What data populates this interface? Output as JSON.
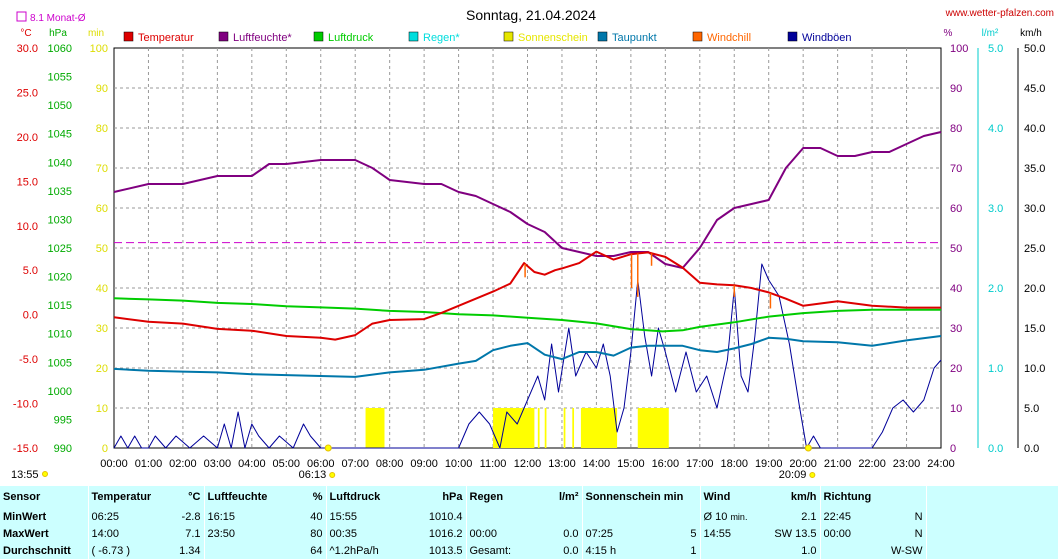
{
  "header": {
    "title": "Sonntag, 21.04.2024",
    "site": "www.wetter-pfalzen.com",
    "month_avg_label": "8.1 Monat-Ø"
  },
  "units": {
    "celsius": "°C",
    "hpa": "hPa",
    "min": "min",
    "percent": "%",
    "rain": "l/m²",
    "wind": "km/h"
  },
  "legend": [
    {
      "label": "Temperatur",
      "color": "#dd0000"
    },
    {
      "label": "Luftfeuchte*",
      "color": "#800080"
    },
    {
      "label": "Luftdruck",
      "color": "#00cc00"
    },
    {
      "label": "Regen*",
      "color": "#00dddd"
    },
    {
      "label": "Sonnenschein",
      "color": "#e6e600"
    },
    {
      "label": "Taupunkt",
      "color": "#0077aa"
    },
    {
      "label": "Windchill",
      "color": "#ff6600"
    },
    {
      "label": "Windböen",
      "color": "#000099"
    }
  ],
  "markers": {
    "sunrise": "06:13",
    "sunset": "20:09",
    "left_time": "13:55"
  },
  "chart_data": {
    "type": "line",
    "title": "Sonntag, 21.04.2024",
    "x_unit": "hours",
    "x_ticks": [
      "00:00",
      "01:00",
      "02:00",
      "03:00",
      "04:00",
      "05:00",
      "06:00",
      "07:00",
      "08:00",
      "09:00",
      "10:00",
      "11:00",
      "12:00",
      "13:00",
      "14:00",
      "15:00",
      "16:00",
      "17:00",
      "18:00",
      "19:00",
      "20:00",
      "21:00",
      "22:00",
      "23:00",
      "24:00"
    ],
    "axes": {
      "temperature": {
        "ticks": [
          "30.0",
          "25.0",
          "20.0",
          "15.0",
          "10.0",
          "5.0",
          "0.0",
          "-5.0",
          "-10.0",
          "-15.0"
        ],
        "range": [
          -15,
          30
        ]
      },
      "pressure": {
        "ticks": [
          "1060",
          "1055",
          "1050",
          "1045",
          "1040",
          "1035",
          "1030",
          "1025",
          "1020",
          "1015",
          "1010",
          "1005",
          "1000",
          "995",
          "990"
        ],
        "range": [
          990,
          1060
        ]
      },
      "minutes": {
        "ticks": [
          "100",
          "90",
          "80",
          "70",
          "60",
          "50",
          "40",
          "30",
          "20",
          "10",
          "0"
        ],
        "range": [
          0,
          100
        ]
      },
      "humidity": {
        "ticks": [
          "100",
          "90",
          "80",
          "70",
          "60",
          "50",
          "40",
          "30",
          "20",
          "10",
          "0"
        ],
        "range": [
          0,
          100
        ]
      },
      "rain": {
        "ticks": [
          "5.0",
          "4.0",
          "3.0",
          "2.0",
          "1.0",
          "0.0"
        ],
        "range": [
          0,
          5
        ]
      },
      "wind": {
        "ticks": [
          "50.0",
          "45.0",
          "40.0",
          "35.0",
          "30.0",
          "25.0",
          "20.0",
          "15.0",
          "10.0",
          "5.0",
          "0.0"
        ],
        "range": [
          0,
          50
        ]
      }
    },
    "month_avg_temperature": 8.1,
    "series": [
      {
        "name": "Temperatur",
        "axis": "temperature",
        "color": "#dd0000",
        "points": [
          [
            0,
            -0.3
          ],
          [
            1,
            -0.8
          ],
          [
            2,
            -1.0
          ],
          [
            3,
            -1.6
          ],
          [
            4,
            -1.8
          ],
          [
            5,
            -2.4
          ],
          [
            6,
            -2.6
          ],
          [
            6.42,
            -2.8
          ],
          [
            7,
            -2.3
          ],
          [
            7.5,
            -1.0
          ],
          [
            8,
            -0.6
          ],
          [
            9,
            -0.5
          ],
          [
            9.5,
            0.2
          ],
          [
            10,
            1.0
          ],
          [
            10.5,
            1.8
          ],
          [
            11,
            2.6
          ],
          [
            11.5,
            3.5
          ],
          [
            11.9,
            5.8
          ],
          [
            12.2,
            4.8
          ],
          [
            12.5,
            4.5
          ],
          [
            12.8,
            5.0
          ],
          [
            13,
            5.2
          ],
          [
            13.5,
            5.8
          ],
          [
            14,
            7.1
          ],
          [
            14.5,
            6.2
          ],
          [
            15,
            6.8
          ],
          [
            15.5,
            7.0
          ],
          [
            16,
            6.5
          ],
          [
            16.5,
            5.3
          ],
          [
            17,
            3.6
          ],
          [
            17.5,
            3.4
          ],
          [
            18,
            3.3
          ],
          [
            18.5,
            3.0
          ],
          [
            19,
            2.5
          ],
          [
            19.5,
            1.8
          ],
          [
            20,
            1.0
          ],
          [
            21,
            1.5
          ],
          [
            22,
            1.0
          ],
          [
            23,
            0.8
          ],
          [
            24,
            0.8
          ]
        ]
      },
      {
        "name": "Luftfeuchte*",
        "axis": "humidity",
        "color": "#800080",
        "points": [
          [
            0,
            64
          ],
          [
            1,
            66
          ],
          [
            2,
            66
          ],
          [
            3,
            68
          ],
          [
            4,
            68
          ],
          [
            4.5,
            71
          ],
          [
            5,
            71
          ],
          [
            6,
            72
          ],
          [
            7,
            72
          ],
          [
            7.5,
            70
          ],
          [
            8,
            67
          ],
          [
            9,
            66
          ],
          [
            9.5,
            66
          ],
          [
            10,
            64
          ],
          [
            10.5,
            63
          ],
          [
            11,
            61
          ],
          [
            11.5,
            59
          ],
          [
            12,
            56
          ],
          [
            12.5,
            54
          ],
          [
            13,
            50
          ],
          [
            13.5,
            49
          ],
          [
            14,
            48
          ],
          [
            14.5,
            48
          ],
          [
            15,
            49
          ],
          [
            15.5,
            49
          ],
          [
            16,
            46
          ],
          [
            16.5,
            45
          ],
          [
            17,
            50
          ],
          [
            17.5,
            57
          ],
          [
            18,
            60
          ],
          [
            18.5,
            61
          ],
          [
            19,
            62
          ],
          [
            19.5,
            70
          ],
          [
            20,
            75
          ],
          [
            20.5,
            75
          ],
          [
            21,
            73
          ],
          [
            21.5,
            73
          ],
          [
            22,
            74
          ],
          [
            22.5,
            74
          ],
          [
            23,
            76
          ],
          [
            23.5,
            78
          ],
          [
            24,
            79
          ]
        ]
      },
      {
        "name": "Luftdruck",
        "axis": "pressure",
        "color": "#00cc00",
        "points": [
          [
            0,
            1016.2
          ],
          [
            1,
            1016.0
          ],
          [
            2,
            1015.8
          ],
          [
            3,
            1015.4
          ],
          [
            4,
            1015.2
          ],
          [
            5,
            1014.8
          ],
          [
            6,
            1014.6
          ],
          [
            7,
            1014.4
          ],
          [
            8,
            1014.0
          ],
          [
            9,
            1013.8
          ],
          [
            10,
            1013.4
          ],
          [
            11,
            1013.2
          ],
          [
            12,
            1012.8
          ],
          [
            13,
            1012.4
          ],
          [
            14,
            1011.8
          ],
          [
            15,
            1010.8
          ],
          [
            15.92,
            1010.4
          ],
          [
            16.5,
            1010.6
          ],
          [
            17,
            1011.2
          ],
          [
            18,
            1012.0
          ],
          [
            19,
            1013.0
          ],
          [
            20,
            1013.6
          ],
          [
            21,
            1014.0
          ],
          [
            22,
            1014.2
          ],
          [
            23,
            1014.2
          ],
          [
            24,
            1014.2
          ]
        ]
      },
      {
        "name": "Taupunkt",
        "axis": "temperature",
        "color": "#0077aa",
        "points": [
          [
            0,
            -6.1
          ],
          [
            1,
            -6.3
          ],
          [
            2,
            -6.4
          ],
          [
            3,
            -6.5
          ],
          [
            4,
            -6.7
          ],
          [
            5,
            -6.8
          ],
          [
            6,
            -6.9
          ],
          [
            7,
            -7.0
          ],
          [
            8,
            -6.5
          ],
          [
            9,
            -6.2
          ],
          [
            10,
            -5.5
          ],
          [
            10.5,
            -5.2
          ],
          [
            11,
            -4.0
          ],
          [
            11.5,
            -3.5
          ],
          [
            12,
            -3.2
          ],
          [
            12.5,
            -4.5
          ],
          [
            13,
            -5.0
          ],
          [
            13.5,
            -4.2
          ],
          [
            14,
            -4.2
          ],
          [
            14.5,
            -4.6
          ],
          [
            15,
            -3.7
          ],
          [
            15.5,
            -3.5
          ],
          [
            16,
            -3.5
          ],
          [
            16.5,
            -3.5
          ],
          [
            17,
            -4.0
          ],
          [
            17.5,
            -4.2
          ],
          [
            18,
            -3.8
          ],
          [
            18.5,
            -3.3
          ],
          [
            19,
            -2.6
          ],
          [
            19.5,
            -2.7
          ],
          [
            20,
            -3.0
          ],
          [
            21,
            -3.1
          ],
          [
            22,
            -3.5
          ],
          [
            23,
            -2.9
          ],
          [
            24,
            -2.4
          ]
        ]
      },
      {
        "name": "Windböen",
        "axis": "wind",
        "color": "#000099",
        "points": [
          [
            0,
            0
          ],
          [
            0.2,
            1.5
          ],
          [
            0.4,
            0
          ],
          [
            0.6,
            1.5
          ],
          [
            0.8,
            0
          ],
          [
            1,
            0
          ],
          [
            1.2,
            1.5
          ],
          [
            1.5,
            0
          ],
          [
            1.8,
            1.5
          ],
          [
            2.2,
            0
          ],
          [
            2.6,
            1.5
          ],
          [
            3,
            0
          ],
          [
            3.2,
            3
          ],
          [
            3.4,
            0
          ],
          [
            3.6,
            4.5
          ],
          [
            3.8,
            0
          ],
          [
            4,
            3
          ],
          [
            4.2,
            1.5
          ],
          [
            4.5,
            0
          ],
          [
            4.8,
            1.5
          ],
          [
            5.2,
            0
          ],
          [
            5.5,
            3
          ],
          [
            5.7,
            1.5
          ],
          [
            6,
            0
          ],
          [
            7,
            0
          ],
          [
            9,
            0
          ],
          [
            10,
            0
          ],
          [
            10.3,
            3
          ],
          [
            10.6,
            4.5
          ],
          [
            10.9,
            3
          ],
          [
            11.2,
            0
          ],
          [
            11.4,
            4.5
          ],
          [
            11.7,
            3
          ],
          [
            12,
            6
          ],
          [
            12.3,
            9
          ],
          [
            12.5,
            6
          ],
          [
            12.7,
            13
          ],
          [
            12.9,
            7
          ],
          [
            13.2,
            15
          ],
          [
            13.4,
            9
          ],
          [
            13.7,
            12
          ],
          [
            14,
            10
          ],
          [
            14.2,
            13
          ],
          [
            14.4,
            9
          ],
          [
            14.6,
            2
          ],
          [
            14.8,
            5
          ],
          [
            15,
            12
          ],
          [
            15.2,
            21
          ],
          [
            15.4,
            14
          ],
          [
            15.6,
            9
          ],
          [
            15.8,
            15
          ],
          [
            16,
            12
          ],
          [
            16.3,
            7
          ],
          [
            16.6,
            12
          ],
          [
            16.9,
            7
          ],
          [
            17.2,
            9
          ],
          [
            17.5,
            5
          ],
          [
            17.8,
            11
          ],
          [
            18,
            20
          ],
          [
            18.2,
            9
          ],
          [
            18.4,
            7
          ],
          [
            18.6,
            14
          ],
          [
            18.8,
            23
          ],
          [
            19,
            21
          ],
          [
            19.3,
            19
          ],
          [
            19.6,
            13
          ],
          [
            19.9,
            5
          ],
          [
            20.1,
            0
          ],
          [
            20.3,
            1.5
          ],
          [
            20.5,
            0
          ],
          [
            22,
            0
          ],
          [
            22.3,
            2
          ],
          [
            22.6,
            5
          ],
          [
            22.9,
            6
          ],
          [
            23.2,
            4.5
          ],
          [
            23.5,
            6
          ],
          [
            23.8,
            10
          ],
          [
            24,
            11
          ]
        ]
      }
    ],
    "sunshine_blocks": [
      [
        7.3,
        7.85
      ],
      [
        11.0,
        12.2
      ],
      [
        12.3,
        12.35
      ],
      [
        12.5,
        12.55
      ],
      [
        13.05,
        13.1
      ],
      [
        13.3,
        13.35
      ],
      [
        13.55,
        14.6
      ],
      [
        15.2,
        16.1
      ]
    ],
    "windchill_spikes": [
      [
        11.93,
        4.2
      ],
      [
        15.02,
        3.0
      ],
      [
        15.2,
        2.0
      ],
      [
        15.6,
        5.5
      ],
      [
        18.0,
        2.0
      ],
      [
        19.05,
        0.7
      ]
    ]
  },
  "stats": {
    "headers": [
      "Sensor",
      "Temperatur",
      "°C",
      "Luftfeuchte",
      "%",
      "Luftdruck",
      "hPa",
      "Regen",
      "l/m²",
      "Sonnenschein min",
      "Wind",
      "km/h",
      "Richtung"
    ],
    "rows": [
      {
        "label": "MinWert",
        "temp_time": "06:25",
        "temp": "-2.8",
        "hum_time": "16:15",
        "hum": "40",
        "press_time": "15:55",
        "press": "1010.4",
        "rain_time": "",
        "rain": "",
        "sun_time": "",
        "sun": "",
        "wind_label": "Ø 10",
        "wind_sub": "min.",
        "wind": "2.1",
        "dir_time": "22:45",
        "dir": "N"
      },
      {
        "label": "MaxWert",
        "temp_time": "14:00",
        "temp": "7.1",
        "hum_time": "23:50",
        "hum": "80",
        "press_time": "00:35",
        "press": "1016.2",
        "rain_time": "00:00",
        "rain": "0.0",
        "sun_time": "07:25",
        "sun": "5",
        "wind_label": "14:55",
        "wind_sub": "",
        "wind": "SW 13.5",
        "dir_time": "00:00",
        "dir": "N"
      },
      {
        "label": "Durchschnitt",
        "temp_time": "( -6.73 )",
        "temp": "1.34",
        "hum_time": "",
        "hum": "64",
        "press_time": "^1.2hPa/h",
        "press": "1013.5",
        "rain_time": "Gesamt:",
        "rain": "0.0",
        "sun_time": "4:15 h",
        "sun": "1",
        "wind_label": "",
        "wind_sub": "",
        "wind": "1.0",
        "dir_time": "",
        "dir": "W-SW"
      }
    ]
  }
}
